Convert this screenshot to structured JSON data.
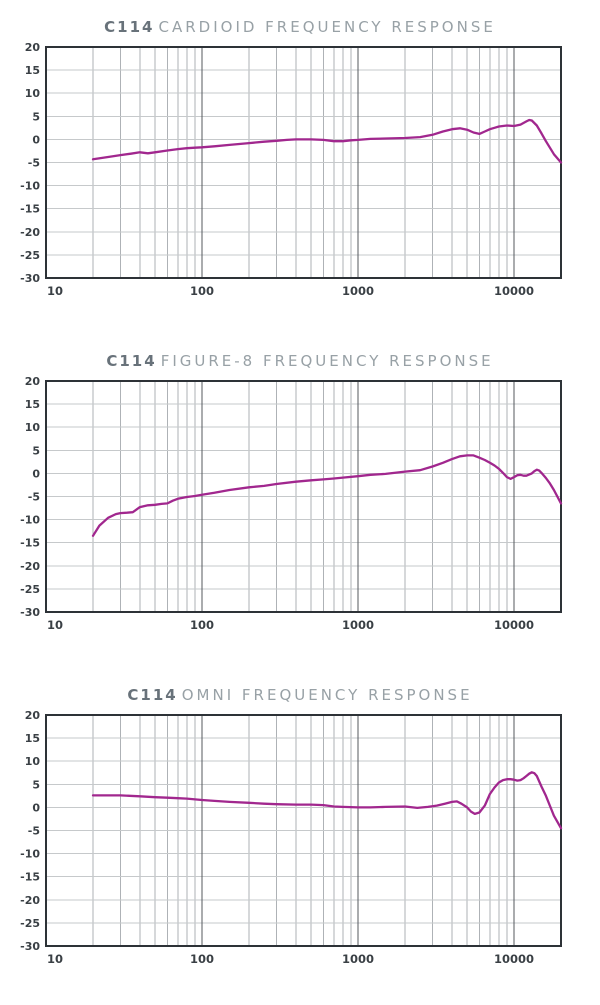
{
  "page": {
    "background": "#ffffff"
  },
  "style": {
    "curve_color": "#a1278e",
    "border_color": "#2d3237",
    "decade_line_color": "#54595e",
    "minor_line_color": "#aeb2b6",
    "h_grid_color": "#c6c9cb",
    "tick_label_color": "#3a4045",
    "title_model_color": "#68727a",
    "title_text_color": "#98a1a6"
  },
  "chart_data": [
    {
      "type": "line",
      "title": "C114 CARDIOID FREQUENCY RESPONSE",
      "title_model": "C114",
      "title_rest": "CARDIOID FREQUENCY RESPONSE",
      "xlabel": "",
      "ylabel": "",
      "x_scale": "log",
      "xlim": [
        10,
        20000
      ],
      "ylim": [
        -30,
        20
      ],
      "x_ticks": [
        10,
        100,
        1000,
        10000
      ],
      "y_ticks": [
        20,
        15,
        10,
        5,
        0,
        -5,
        -10,
        -15,
        -20,
        -25,
        -30
      ],
      "grid": true,
      "legend": false,
      "series_name": "Cardioid frequency response (dB vs Hz)",
      "points": [
        [
          20,
          -4.3
        ],
        [
          25,
          -3.8
        ],
        [
          30,
          -3.4
        ],
        [
          35,
          -3.1
        ],
        [
          40,
          -2.8
        ],
        [
          45,
          -3.0
        ],
        [
          50,
          -2.8
        ],
        [
          60,
          -2.4
        ],
        [
          70,
          -2.1
        ],
        [
          80,
          -1.9
        ],
        [
          90,
          -1.8
        ],
        [
          100,
          -1.7
        ],
        [
          120,
          -1.5
        ],
        [
          150,
          -1.2
        ],
        [
          200,
          -0.8
        ],
        [
          250,
          -0.5
        ],
        [
          300,
          -0.3
        ],
        [
          350,
          -0.1
        ],
        [
          400,
          0.0
        ],
        [
          500,
          0.0
        ],
        [
          600,
          -0.1
        ],
        [
          700,
          -0.4
        ],
        [
          800,
          -0.4
        ],
        [
          900,
          -0.2
        ],
        [
          1000,
          -0.1
        ],
        [
          1200,
          0.1
        ],
        [
          1500,
          0.2
        ],
        [
          2000,
          0.3
        ],
        [
          2500,
          0.5
        ],
        [
          3000,
          1.0
        ],
        [
          3500,
          1.7
        ],
        [
          4000,
          2.2
        ],
        [
          4500,
          2.4
        ],
        [
          5000,
          2.1
        ],
        [
          5500,
          1.5
        ],
        [
          6000,
          1.2
        ],
        [
          6500,
          1.7
        ],
        [
          7000,
          2.2
        ],
        [
          7500,
          2.5
        ],
        [
          8000,
          2.8
        ],
        [
          9000,
          3.0
        ],
        [
          10000,
          2.9
        ],
        [
          11000,
          3.2
        ],
        [
          12000,
          3.9
        ],
        [
          12500,
          4.2
        ],
        [
          13000,
          4.1
        ],
        [
          14000,
          3.0
        ],
        [
          15000,
          1.3
        ],
        [
          16000,
          -0.4
        ],
        [
          18000,
          -3.2
        ],
        [
          20000,
          -5.0
        ]
      ]
    },
    {
      "type": "line",
      "title": "C114 FIGURE-8 FREQUENCY RESPONSE",
      "title_model": "C114",
      "title_rest": "FIGURE-8 FREQUENCY RESPONSE",
      "xlabel": "",
      "ylabel": "",
      "x_scale": "log",
      "xlim": [
        10,
        20000
      ],
      "ylim": [
        -30,
        20
      ],
      "x_ticks": [
        10,
        100,
        1000,
        10000
      ],
      "y_ticks": [
        20,
        15,
        10,
        5,
        0,
        -5,
        -10,
        -15,
        -20,
        -25,
        -30
      ],
      "grid": true,
      "legend": false,
      "series_name": "Figure-8 frequency response (dB vs Hz)",
      "points": [
        [
          20,
          -13.5
        ],
        [
          22,
          -11.3
        ],
        [
          25,
          -9.6
        ],
        [
          28,
          -8.8
        ],
        [
          30,
          -8.6
        ],
        [
          33,
          -8.5
        ],
        [
          36,
          -8.4
        ],
        [
          40,
          -7.3
        ],
        [
          45,
          -6.9
        ],
        [
          50,
          -6.8
        ],
        [
          55,
          -6.6
        ],
        [
          60,
          -6.5
        ],
        [
          65,
          -5.9
        ],
        [
          70,
          -5.5
        ],
        [
          80,
          -5.1
        ],
        [
          90,
          -4.9
        ],
        [
          100,
          -4.6
        ],
        [
          120,
          -4.2
        ],
        [
          150,
          -3.6
        ],
        [
          200,
          -3.0
        ],
        [
          250,
          -2.7
        ],
        [
          300,
          -2.3
        ],
        [
          400,
          -1.8
        ],
        [
          500,
          -1.5
        ],
        [
          600,
          -1.3
        ],
        [
          700,
          -1.1
        ],
        [
          800,
          -0.9
        ],
        [
          1000,
          -0.6
        ],
        [
          1200,
          -0.3
        ],
        [
          1500,
          -0.1
        ],
        [
          2000,
          0.4
        ],
        [
          2500,
          0.7
        ],
        [
          3000,
          1.5
        ],
        [
          3500,
          2.3
        ],
        [
          4000,
          3.1
        ],
        [
          4500,
          3.7
        ],
        [
          5000,
          3.9
        ],
        [
          5500,
          3.9
        ],
        [
          6000,
          3.4
        ],
        [
          6500,
          2.9
        ],
        [
          7000,
          2.3
        ],
        [
          7500,
          1.7
        ],
        [
          8000,
          1.0
        ],
        [
          8500,
          0.1
        ],
        [
          9000,
          -0.8
        ],
        [
          9500,
          -1.2
        ],
        [
          10000,
          -0.8
        ],
        [
          10500,
          -0.4
        ],
        [
          11000,
          -0.3
        ],
        [
          11500,
          -0.5
        ],
        [
          12000,
          -0.5
        ],
        [
          13000,
          0.0
        ],
        [
          13500,
          0.5
        ],
        [
          14000,
          0.8
        ],
        [
          14500,
          0.6
        ],
        [
          15000,
          0.1
        ],
        [
          16000,
          -1.0
        ],
        [
          17000,
          -2.2
        ],
        [
          18000,
          -3.6
        ],
        [
          20000,
          -6.5
        ]
      ]
    },
    {
      "type": "line",
      "title": "C114 OMNI FREQUENCY RESPONSE",
      "title_model": "C114",
      "title_rest": "OMNI FREQUENCY RESPONSE",
      "xlabel": "",
      "ylabel": "",
      "x_scale": "log",
      "xlim": [
        10,
        20000
      ],
      "ylim": [
        -30,
        20
      ],
      "x_ticks": [
        10,
        100,
        1000,
        10000
      ],
      "y_ticks": [
        20,
        15,
        10,
        5,
        0,
        -5,
        -10,
        -15,
        -20,
        -25,
        -30
      ],
      "grid": true,
      "legend": false,
      "series_name": "Omni frequency response (dB vs Hz)",
      "points": [
        [
          20,
          2.6
        ],
        [
          30,
          2.6
        ],
        [
          40,
          2.4
        ],
        [
          50,
          2.2
        ],
        [
          60,
          2.1
        ],
        [
          70,
          2.0
        ],
        [
          80,
          1.9
        ],
        [
          100,
          1.6
        ],
        [
          120,
          1.4
        ],
        [
          150,
          1.2
        ],
        [
          200,
          1.0
        ],
        [
          250,
          0.8
        ],
        [
          300,
          0.7
        ],
        [
          400,
          0.6
        ],
        [
          500,
          0.6
        ],
        [
          600,
          0.5
        ],
        [
          700,
          0.2
        ],
        [
          800,
          0.1
        ],
        [
          1000,
          0.0
        ],
        [
          1200,
          0.0
        ],
        [
          1500,
          0.1
        ],
        [
          2000,
          0.2
        ],
        [
          2400,
          -0.1
        ],
        [
          2800,
          0.1
        ],
        [
          3200,
          0.4
        ],
        [
          3600,
          0.8
        ],
        [
          4000,
          1.2
        ],
        [
          4300,
          1.3
        ],
        [
          4600,
          0.8
        ],
        [
          5000,
          0.0
        ],
        [
          5300,
          -0.9
        ],
        [
          5600,
          -1.4
        ],
        [
          6000,
          -1.1
        ],
        [
          6500,
          0.4
        ],
        [
          7000,
          2.9
        ],
        [
          7500,
          4.3
        ],
        [
          8000,
          5.4
        ],
        [
          8500,
          5.9
        ],
        [
          9000,
          6.1
        ],
        [
          9500,
          6.1
        ],
        [
          10000,
          6.0
        ],
        [
          10500,
          5.8
        ],
        [
          11000,
          5.9
        ],
        [
          11500,
          6.3
        ],
        [
          12000,
          6.8
        ],
        [
          12500,
          7.3
        ],
        [
          13000,
          7.6
        ],
        [
          13500,
          7.4
        ],
        [
          14000,
          6.8
        ],
        [
          15000,
          4.5
        ],
        [
          16000,
          2.5
        ],
        [
          17000,
          0.3
        ],
        [
          18000,
          -1.8
        ],
        [
          20000,
          -4.5
        ]
      ]
    }
  ]
}
